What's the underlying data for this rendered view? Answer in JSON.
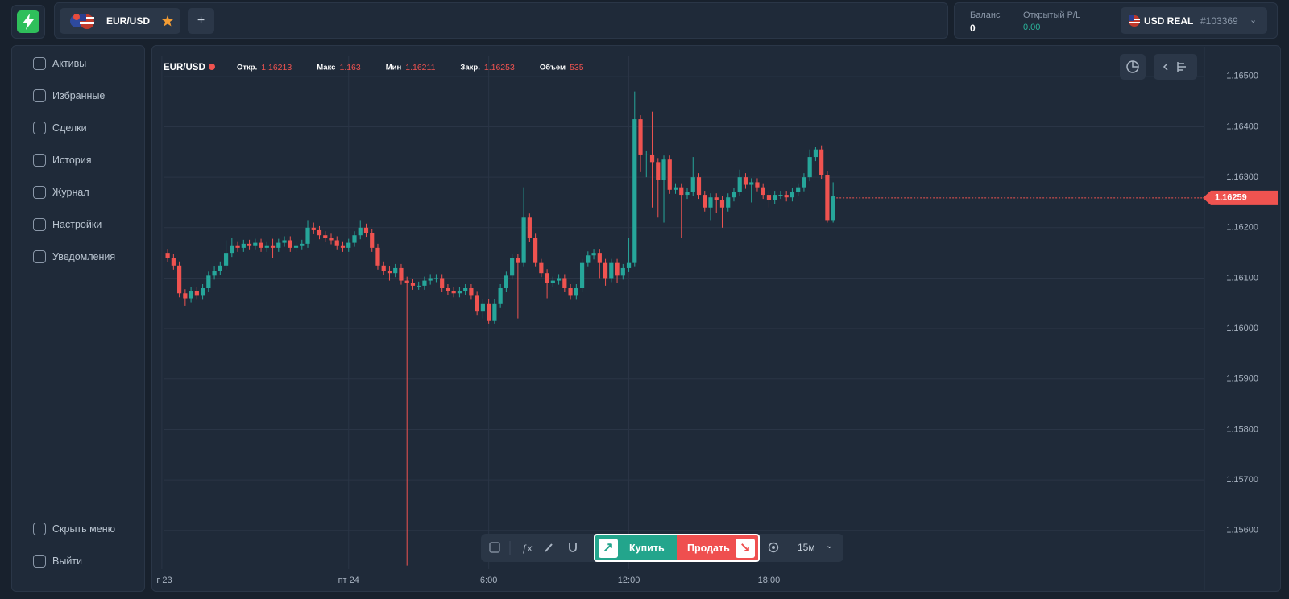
{
  "header": {
    "pair": "EUR/USD",
    "balance_label": "Баланс",
    "balance": "0",
    "pl_label": "Открытый P/L",
    "pl": "0.00",
    "account": "USD REAL",
    "account_id": "#103369"
  },
  "sidebar": {
    "items": [
      "Активы",
      "Избранные",
      "Сделки",
      "История",
      "Журнал",
      "Настройки",
      "Уведомления"
    ],
    "bottom": [
      "Скрыть меню",
      "Выйти"
    ]
  },
  "chart_data": {
    "type": "candlestick",
    "title": "EUR/USD",
    "stats": [
      {
        "label": "Откр.",
        "value": 1.16213
      },
      {
        "label": "Макс",
        "value": 1.163
      },
      {
        "label": "Мин",
        "value": 1.16211
      },
      {
        "label": "Закр.",
        "value": 1.16253
      },
      {
        "label": "Объем",
        "value": 535
      }
    ],
    "up_color": "#26a69a",
    "down_color": "#ef5350",
    "grid": true,
    "xlim": [
      -2.5,
      177.6
    ],
    "xticks": [
      {
        "value": -1,
        "label": "г 23"
      },
      {
        "value": 31,
        "label": "пт 24"
      },
      {
        "value": 55,
        "label": "6:00"
      },
      {
        "value": 79,
        "label": "12:00"
      },
      {
        "value": 103,
        "label": "18:00"
      }
    ],
    "ylim": [
      1.15523,
      1.16554
    ],
    "yticks": [
      {
        "value": 1.156,
        "label": "1.15600"
      },
      {
        "value": 1.157,
        "label": "1.15700"
      },
      {
        "value": 1.158,
        "label": "1.15800"
      },
      {
        "value": 1.159,
        "label": "1.15900"
      },
      {
        "value": 1.16,
        "label": "1.16000"
      },
      {
        "value": 1.161,
        "label": "1.16100"
      },
      {
        "value": 1.162,
        "label": "1.16200"
      },
      {
        "value": 1.163,
        "label": "1.16300"
      },
      {
        "value": 1.164,
        "label": "1.16400"
      },
      {
        "value": 1.165,
        "label": "1.16500"
      }
    ],
    "open": [
      1.1615,
      1.1614,
      1.16125,
      1.1607,
      1.1606,
      1.16075,
      1.16065,
      1.1608,
      1.16105,
      1.16115,
      1.16125,
      1.1615,
      1.16165,
      1.1616,
      1.16168,
      1.16165,
      1.1617,
      1.1616,
      1.16165,
      1.1616,
      1.1617,
      1.16175,
      1.1616,
      1.16165,
      1.16168,
      1.162,
      1.16195,
      1.16185,
      1.1618,
      1.16175,
      1.16165,
      1.1616,
      1.1617,
      1.16185,
      1.162,
      1.1619,
      1.1616,
      1.16125,
      1.16115,
      1.1611,
      1.1612,
      1.16095,
      1.1609,
      1.16085,
      1.16085,
      1.16095,
      1.161,
      1.161,
      1.1608,
      1.16075,
      1.1607,
      1.16075,
      1.1608,
      1.16065,
      1.16035,
      1.1605,
      1.16015,
      1.1605,
      1.1608,
      1.16105,
      1.1614,
      1.1613,
      1.1622,
      1.1618,
      1.1613,
      1.1611,
      1.1609,
      1.16095,
      1.161,
      1.1608,
      1.16065,
      1.1608,
      1.1613,
      1.16145,
      1.1615,
      1.1613,
      1.161,
      1.1613,
      1.16105,
      1.1612,
      1.1613,
      1.16415,
      1.16345,
      1.16345,
      1.1633,
      1.16295,
      1.16335,
      1.16275,
      1.1628,
      1.16265,
      1.1627,
      1.163,
      1.16265,
      1.1624,
      1.1626,
      1.16255,
      1.1624,
      1.1626,
      1.1627,
      1.163,
      1.16285,
      1.1629,
      1.1628,
      1.16265,
      1.16255,
      1.16265,
      1.16265,
      1.1626,
      1.1627,
      1.1628,
      1.163,
      1.1634,
      1.16355,
      1.16305,
      1.16215
    ],
    "high": [
      1.16158,
      1.16148,
      1.16133,
      1.16078,
      1.16083,
      1.16083,
      1.16088,
      1.16113,
      1.16123,
      1.16133,
      1.16175,
      1.1618,
      1.16173,
      1.16176,
      1.16176,
      1.16178,
      1.16178,
      1.16173,
      1.16178,
      1.16178,
      1.16183,
      1.16183,
      1.16173,
      1.16176,
      1.16215,
      1.1621,
      1.16203,
      1.16193,
      1.16188,
      1.16183,
      1.16173,
      1.16178,
      1.16193,
      1.16215,
      1.16208,
      1.16198,
      1.16168,
      1.16133,
      1.16123,
      1.16128,
      1.16128,
      1.16103,
      1.16098,
      1.16093,
      1.16103,
      1.16108,
      1.16108,
      1.16108,
      1.16088,
      1.16083,
      1.16083,
      1.16088,
      1.16088,
      1.16073,
      1.16058,
      1.16058,
      1.16058,
      1.16088,
      1.16113,
      1.16148,
      1.16148,
      1.1628,
      1.16228,
      1.16188,
      1.16138,
      1.16118,
      1.16103,
      1.16108,
      1.16108,
      1.16088,
      1.16088,
      1.16138,
      1.16153,
      1.16158,
      1.16158,
      1.16138,
      1.16138,
      1.16138,
      1.16128,
      1.1618,
      1.1647,
      1.16423,
      1.16353,
      1.1643,
      1.16338,
      1.16343,
      1.16343,
      1.16288,
      1.16288,
      1.16278,
      1.1634,
      1.16308,
      1.16273,
      1.16268,
      1.16268,
      1.16263,
      1.16268,
      1.16278,
      1.16315,
      1.16308,
      1.16298,
      1.16298,
      1.16288,
      1.16273,
      1.16273,
      1.16273,
      1.16273,
      1.16278,
      1.16288,
      1.16308,
      1.16355,
      1.1636,
      1.16363,
      1.16313,
      1.1629
    ],
    "low": [
      1.16132,
      1.16117,
      1.16062,
      1.16045,
      1.16052,
      1.16057,
      1.16057,
      1.16072,
      1.16097,
      1.16107,
      1.16117,
      1.16142,
      1.16152,
      1.16152,
      1.16157,
      1.16157,
      1.16152,
      1.16152,
      1.1614,
      1.16152,
      1.16162,
      1.16152,
      1.16152,
      1.16157,
      1.1616,
      1.16187,
      1.16177,
      1.16172,
      1.16167,
      1.16157,
      1.16152,
      1.16152,
      1.16162,
      1.16177,
      1.16182,
      1.16152,
      1.16117,
      1.16107,
      1.16095,
      1.16102,
      1.16087,
      1.1553,
      1.16077,
      1.16077,
      1.16077,
      1.16087,
      1.16092,
      1.16072,
      1.16067,
      1.16062,
      1.16062,
      1.16067,
      1.16057,
      1.16027,
      1.1602,
      1.1601,
      1.1601,
      1.16042,
      1.16072,
      1.16097,
      1.1602,
      1.16122,
      1.16172,
      1.16122,
      1.16102,
      1.1606,
      1.16082,
      1.16087,
      1.16072,
      1.16057,
      1.16057,
      1.16072,
      1.16122,
      1.16137,
      1.161,
      1.16085,
      1.16092,
      1.1609,
      1.16097,
      1.16112,
      1.16122,
      1.1631,
      1.163,
      1.1624,
      1.1622,
      1.1621,
      1.16267,
      1.16267,
      1.1618,
      1.16257,
      1.16262,
      1.16257,
      1.16232,
      1.16215,
      1.1623,
      1.162,
      1.16232,
      1.16252,
      1.16262,
      1.16277,
      1.1625,
      1.16272,
      1.16257,
      1.1624,
      1.16247,
      1.16257,
      1.16252,
      1.16252,
      1.16262,
      1.16272,
      1.16292,
      1.16332,
      1.16297,
      1.1621,
      1.1621
    ],
    "close": [
      1.1614,
      1.16125,
      1.1607,
      1.1606,
      1.16075,
      1.16065,
      1.1608,
      1.16105,
      1.16115,
      1.16125,
      1.1615,
      1.16165,
      1.1616,
      1.16168,
      1.16165,
      1.1617,
      1.1616,
      1.16165,
      1.1616,
      1.1617,
      1.16175,
      1.1616,
      1.16165,
      1.16168,
      1.162,
      1.16195,
      1.16185,
      1.1618,
      1.16175,
      1.16165,
      1.1616,
      1.1617,
      1.16185,
      1.162,
      1.1619,
      1.1616,
      1.16125,
      1.16115,
      1.1611,
      1.1612,
      1.16095,
      1.1609,
      1.16085,
      1.16085,
      1.16095,
      1.161,
      1.161,
      1.1608,
      1.16075,
      1.1607,
      1.16075,
      1.1608,
      1.16065,
      1.16035,
      1.1605,
      1.16015,
      1.1605,
      1.1608,
      1.16105,
      1.1614,
      1.1613,
      1.1622,
      1.1618,
      1.1613,
      1.1611,
      1.1609,
      1.16095,
      1.161,
      1.1608,
      1.16065,
      1.1608,
      1.1613,
      1.16145,
      1.1615,
      1.1613,
      1.161,
      1.1613,
      1.16105,
      1.1612,
      1.1613,
      1.16415,
      1.16345,
      1.16345,
      1.1633,
      1.16295,
      1.16335,
      1.16275,
      1.1628,
      1.16265,
      1.1627,
      1.163,
      1.16265,
      1.1624,
      1.1626,
      1.16255,
      1.1624,
      1.1626,
      1.1627,
      1.163,
      1.16285,
      1.1629,
      1.1628,
      1.16265,
      1.16255,
      1.16265,
      1.16265,
      1.1626,
      1.1627,
      1.1628,
      1.163,
      1.1634,
      1.16355,
      1.16305,
      1.16215,
      1.16259
    ]
  },
  "toolbar": {
    "buy": "Купить",
    "sell": "Продать",
    "timeframe": "15м"
  }
}
